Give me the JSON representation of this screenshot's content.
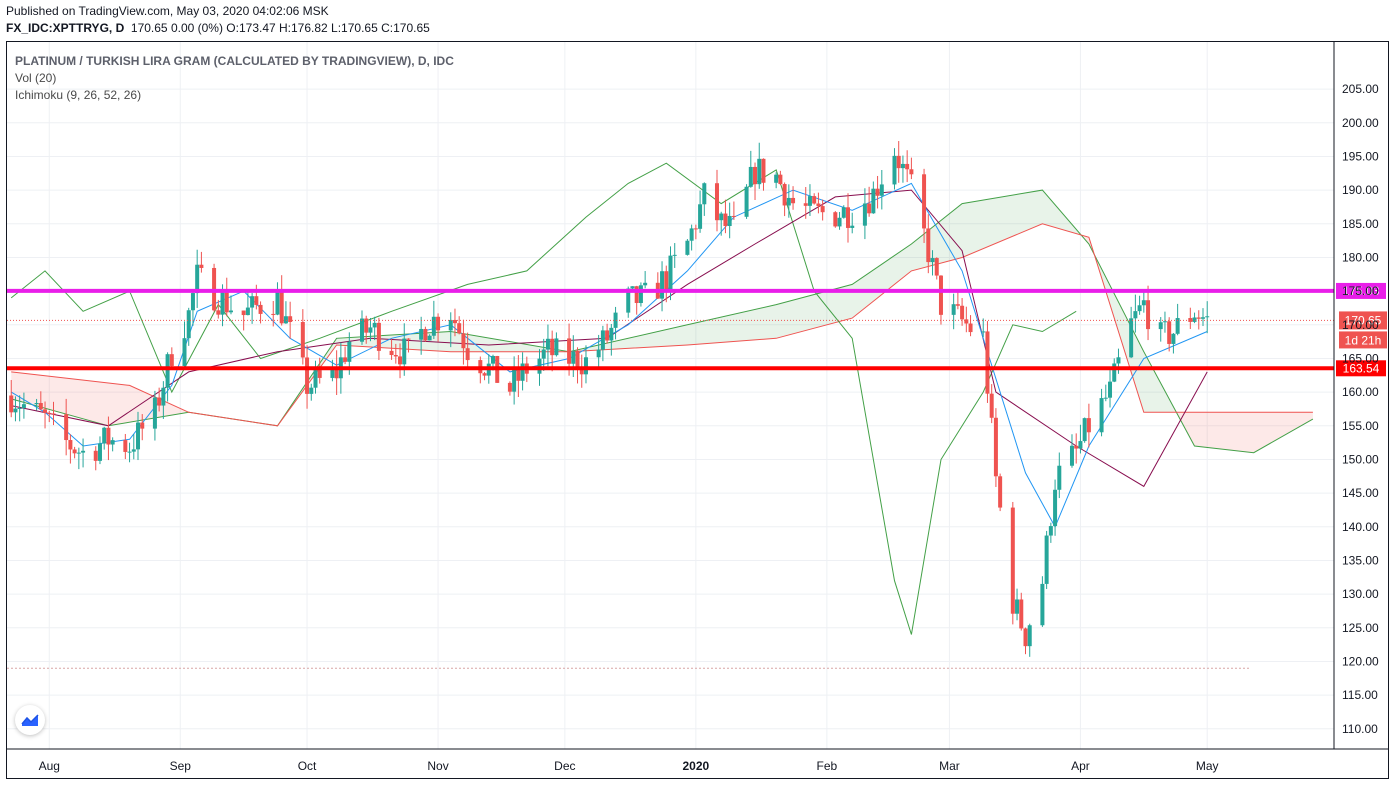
{
  "header": {
    "published": "Published on TradingView.com, May 03, 2020 04:02:06 MSK",
    "symbol": "FX_IDC:XPTTRYG, D",
    "ohlc": "170.65 0.00 (0%) O:173.47 H:176.82 L:170.65 C:170.65"
  },
  "legend": {
    "title": "PLATINUM / TURKISH LIRA GRAM (CALCULATED BY TRADINGVIEW), D, IDC",
    "vol": "Vol (20)",
    "ichimoku": "Ichimoku (9, 26, 52, 26)"
  },
  "logo_icon": "tradingview-logo-icon",
  "colors": {
    "up": "#26a69a",
    "down": "#ef5350",
    "conversion": "#2196f3",
    "base": "#880e4f",
    "lagging": "#43a047",
    "leadA": "#43a047",
    "leadB": "#ef5350",
    "magenta_line": "#e91ee9",
    "red_line": "#ff0000",
    "grid": "#eef0f4"
  },
  "chart_data": {
    "type": "candlestick",
    "title": "PLATINUM / TURKISH LIRA GRAM (CALCULATED BY TRADINGVIEW), D, IDC",
    "y_ticks": [
      110,
      115,
      120,
      125,
      130,
      135,
      140,
      145,
      150,
      155,
      160,
      165,
      170,
      175,
      180,
      185,
      190,
      195,
      200,
      205
    ],
    "y_range": [
      107,
      212
    ],
    "x_labels": [
      {
        "label": "Aug",
        "date": "2019-08-01"
      },
      {
        "label": "Sep",
        "date": "2019-09-01"
      },
      {
        "label": "Oct",
        "date": "2019-10-01"
      },
      {
        "label": "Nov",
        "date": "2019-11-01"
      },
      {
        "label": "Dec",
        "date": "2019-12-01"
      },
      {
        "label": "2020",
        "date": "2020-01-01"
      },
      {
        "label": "Feb",
        "date": "2020-02-01"
      },
      {
        "label": "Mar",
        "date": "2020-03-01"
      },
      {
        "label": "Apr",
        "date": "2020-04-01"
      },
      {
        "label": "May",
        "date": "2020-05-01"
      }
    ],
    "horizontal_lines": [
      {
        "name": "resistance",
        "value": 175.03,
        "label": "175.03",
        "color": "#e91ee9"
      },
      {
        "name": "support",
        "value": 163.54,
        "label": "163.54",
        "color": "#ff0000"
      }
    ],
    "last_price": {
      "value": 170.65,
      "label": "170.65",
      "countdown": "1d 21h"
    },
    "close_series": [
      {
        "date": "2019-07-23",
        "close": 159.5
      },
      {
        "date": "2019-07-26",
        "close": 158.0
      },
      {
        "date": "2019-07-31",
        "close": 156.0
      },
      {
        "date": "2019-08-05",
        "close": 152.5
      },
      {
        "date": "2019-08-09",
        "close": 151.0
      },
      {
        "date": "2019-08-15",
        "close": 153.0
      },
      {
        "date": "2019-08-20",
        "close": 152.0
      },
      {
        "date": "2019-08-26",
        "close": 157.0
      },
      {
        "date": "2019-08-30",
        "close": 166.0
      },
      {
        "date": "2019-09-03",
        "close": 171.5
      },
      {
        "date": "2019-09-05",
        "close": 177.0
      },
      {
        "date": "2019-09-10",
        "close": 174.0
      },
      {
        "date": "2019-09-16",
        "close": 171.5
      },
      {
        "date": "2019-09-20",
        "close": 173.0
      },
      {
        "date": "2019-09-24",
        "close": 174.0
      },
      {
        "date": "2019-09-27",
        "close": 168.5
      },
      {
        "date": "2019-10-01",
        "close": 161.0
      },
      {
        "date": "2019-10-04",
        "close": 161.5
      },
      {
        "date": "2019-10-08",
        "close": 163.0
      },
      {
        "date": "2019-10-11",
        "close": 167.5
      },
      {
        "date": "2019-10-16",
        "close": 169.5
      },
      {
        "date": "2019-10-21",
        "close": 167.0
      },
      {
        "date": "2019-10-25",
        "close": 165.5
      },
      {
        "date": "2019-10-29",
        "close": 170.0
      },
      {
        "date": "2019-11-04",
        "close": 172.0
      },
      {
        "date": "2019-11-08",
        "close": 166.5
      },
      {
        "date": "2019-11-13",
        "close": 163.5
      },
      {
        "date": "2019-11-18",
        "close": 160.5
      },
      {
        "date": "2019-11-22",
        "close": 163.5
      },
      {
        "date": "2019-11-27",
        "close": 166.0
      },
      {
        "date": "2019-12-02",
        "close": 165.0
      },
      {
        "date": "2019-12-06",
        "close": 164.5
      },
      {
        "date": "2019-12-11",
        "close": 168.0
      },
      {
        "date": "2019-12-16",
        "close": 173.5
      },
      {
        "date": "2019-12-20",
        "close": 174.0
      },
      {
        "date": "2019-12-25",
        "close": 177.0
      },
      {
        "date": "2019-12-30",
        "close": 182.0
      },
      {
        "date": "2020-01-03",
        "close": 189.0
      },
      {
        "date": "2020-01-07",
        "close": 185.0
      },
      {
        "date": "2020-01-10",
        "close": 184.0
      },
      {
        "date": "2020-01-15",
        "close": 193.0
      },
      {
        "date": "2020-01-20",
        "close": 192.0
      },
      {
        "date": "2020-01-24",
        "close": 188.0
      },
      {
        "date": "2020-01-29",
        "close": 186.5
      },
      {
        "date": "2020-02-03",
        "close": 186.5
      },
      {
        "date": "2020-02-07",
        "close": 187.0
      },
      {
        "date": "2020-02-12",
        "close": 189.5
      },
      {
        "date": "2020-02-17",
        "close": 196.0
      },
      {
        "date": "2020-02-21",
        "close": 190.0
      },
      {
        "date": "2020-02-25",
        "close": 181.0
      },
      {
        "date": "2020-02-28",
        "close": 173.0
      },
      {
        "date": "2020-03-04",
        "close": 170.5
      },
      {
        "date": "2020-03-09",
        "close": 168.0
      },
      {
        "date": "2020-03-12",
        "close": 147.0
      },
      {
        "date": "2020-03-16",
        "close": 129.0
      },
      {
        "date": "2020-03-19",
        "close": 124.0
      },
      {
        "date": "2020-03-23",
        "close": 132.0
      },
      {
        "date": "2020-03-26",
        "close": 147.0
      },
      {
        "date": "2020-03-31",
        "close": 151.0
      },
      {
        "date": "2020-04-03",
        "close": 155.0
      },
      {
        "date": "2020-04-08",
        "close": 160.0
      },
      {
        "date": "2020-04-13",
        "close": 170.0
      },
      {
        "date": "2020-04-16",
        "close": 173.0
      },
      {
        "date": "2020-04-20",
        "close": 168.0
      },
      {
        "date": "2020-04-23",
        "close": 169.0
      },
      {
        "date": "2020-04-28",
        "close": 172.0
      },
      {
        "date": "2020-05-01",
        "close": 170.65
      }
    ],
    "ichimoku": {
      "conversion": [
        {
          "date": "2019-07-23",
          "value": 160
        },
        {
          "date": "2019-07-31",
          "value": 157
        },
        {
          "date": "2019-08-09",
          "value": 152
        },
        {
          "date": "2019-08-20",
          "value": 153
        },
        {
          "date": "2019-08-30",
          "value": 161
        },
        {
          "date": "2019-09-05",
          "value": 172
        },
        {
          "date": "2019-09-16",
          "value": 175
        },
        {
          "date": "2019-09-27",
          "value": 168
        },
        {
          "date": "2019-10-08",
          "value": 164
        },
        {
          "date": "2019-10-21",
          "value": 168
        },
        {
          "date": "2019-11-04",
          "value": 170
        },
        {
          "date": "2019-11-18",
          "value": 163
        },
        {
          "date": "2019-12-02",
          "value": 165
        },
        {
          "date": "2019-12-16",
          "value": 170
        },
        {
          "date": "2019-12-30",
          "value": 178
        },
        {
          "date": "2020-01-10",
          "value": 186
        },
        {
          "date": "2020-01-24",
          "value": 190
        },
        {
          "date": "2020-02-07",
          "value": 187
        },
        {
          "date": "2020-02-21",
          "value": 191
        },
        {
          "date": "2020-03-04",
          "value": 178
        },
        {
          "date": "2020-03-12",
          "value": 162
        },
        {
          "date": "2020-03-19",
          "value": 148
        },
        {
          "date": "2020-03-26",
          "value": 140
        },
        {
          "date": "2020-04-03",
          "value": 152
        },
        {
          "date": "2020-04-16",
          "value": 165
        },
        {
          "date": "2020-05-01",
          "value": 169
        }
      ],
      "base": [
        {
          "date": "2019-07-23",
          "value": 158
        },
        {
          "date": "2019-08-15",
          "value": 155
        },
        {
          "date": "2019-09-03",
          "value": 163
        },
        {
          "date": "2019-09-24",
          "value": 166
        },
        {
          "date": "2019-10-16",
          "value": 168
        },
        {
          "date": "2019-11-13",
          "value": 167
        },
        {
          "date": "2019-12-11",
          "value": 168
        },
        {
          "date": "2019-12-30",
          "value": 176
        },
        {
          "date": "2020-01-15",
          "value": 182
        },
        {
          "date": "2020-02-03",
          "value": 189
        },
        {
          "date": "2020-02-21",
          "value": 190
        },
        {
          "date": "2020-03-04",
          "value": 181
        },
        {
          "date": "2020-03-12",
          "value": 160
        },
        {
          "date": "2020-03-31",
          "value": 152
        },
        {
          "date": "2020-04-16",
          "value": 146
        },
        {
          "date": "2020-05-01",
          "value": 163
        }
      ],
      "lagging_span": [
        {
          "date": "2019-07-23",
          "value": 174
        },
        {
          "date": "2019-07-31",
          "value": 178
        },
        {
          "date": "2019-08-09",
          "value": 172
        },
        {
          "date": "2019-08-20",
          "value": 175
        },
        {
          "date": "2019-08-30",
          "value": 160
        },
        {
          "date": "2019-09-10",
          "value": 173
        },
        {
          "date": "2019-09-20",
          "value": 165
        },
        {
          "date": "2019-10-04",
          "value": 168
        },
        {
          "date": "2019-10-21",
          "value": 172
        },
        {
          "date": "2019-11-08",
          "value": 176
        },
        {
          "date": "2019-11-22",
          "value": 178
        },
        {
          "date": "2019-12-06",
          "value": 186
        },
        {
          "date": "2019-12-16",
          "value": 191
        },
        {
          "date": "2019-12-25",
          "value": 194
        },
        {
          "date": "2020-01-07",
          "value": 188
        },
        {
          "date": "2020-01-20",
          "value": 193
        },
        {
          "date": "2020-01-29",
          "value": 175
        },
        {
          "date": "2020-02-07",
          "value": 168
        },
        {
          "date": "2020-02-17",
          "value": 132
        },
        {
          "date": "2020-02-21",
          "value": 124
        },
        {
          "date": "2020-02-28",
          "value": 150
        },
        {
          "date": "2020-03-09",
          "value": 160
        },
        {
          "date": "2020-03-16",
          "value": 170
        },
        {
          "date": "2020-03-23",
          "value": 169
        },
        {
          "date": "2020-03-31",
          "value": 172
        }
      ],
      "leading_span_a": [
        {
          "date": "2019-07-23",
          "value": 159
        },
        {
          "date": "2019-08-15",
          "value": 155
        },
        {
          "date": "2019-09-03",
          "value": 157
        },
        {
          "date": "2019-09-24",
          "value": 155
        },
        {
          "date": "2019-10-08",
          "value": 168
        },
        {
          "date": "2019-11-04",
          "value": 169
        },
        {
          "date": "2019-12-02",
          "value": 166
        },
        {
          "date": "2019-12-30",
          "value": 170
        },
        {
          "date": "2020-01-20",
          "value": 173
        },
        {
          "date": "2020-02-07",
          "value": 176
        },
        {
          "date": "2020-02-21",
          "value": 182
        },
        {
          "date": "2020-03-04",
          "value": 188
        },
        {
          "date": "2020-03-23",
          "value": 190
        },
        {
          "date": "2020-04-03",
          "value": 182
        },
        {
          "date": "2020-04-16",
          "value": 166
        },
        {
          "date": "2020-04-28",
          "value": 152
        },
        {
          "date": "2020-05-12",
          "value": 151
        },
        {
          "date": "2020-05-26",
          "value": 156
        }
      ],
      "leading_span_b": [
        {
          "date": "2019-07-23",
          "value": 163
        },
        {
          "date": "2019-08-20",
          "value": 161
        },
        {
          "date": "2019-09-03",
          "value": 157
        },
        {
          "date": "2019-09-24",
          "value": 155
        },
        {
          "date": "2019-10-08",
          "value": 167
        },
        {
          "date": "2019-11-04",
          "value": 166
        },
        {
          "date": "2019-12-02",
          "value": 166
        },
        {
          "date": "2019-12-30",
          "value": 167
        },
        {
          "date": "2020-01-20",
          "value": 168
        },
        {
          "date": "2020-02-07",
          "value": 171
        },
        {
          "date": "2020-02-21",
          "value": 178
        },
        {
          "date": "2020-03-04",
          "value": 180
        },
        {
          "date": "2020-03-23",
          "value": 185
        },
        {
          "date": "2020-04-03",
          "value": 183
        },
        {
          "date": "2020-04-16",
          "value": 157
        },
        {
          "date": "2020-05-26",
          "value": 157
        }
      ]
    }
  }
}
